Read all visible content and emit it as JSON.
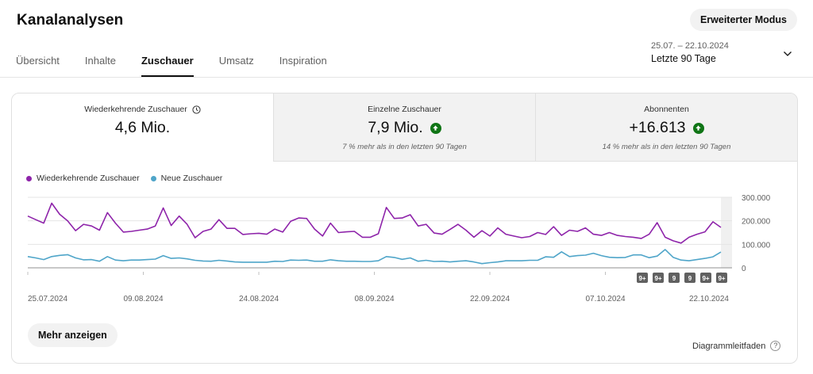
{
  "page_title": "Kanalanalysen",
  "advanced_mode_label": "Erweiterter Modus",
  "tabs": [
    {
      "label": "Übersicht",
      "active": false
    },
    {
      "label": "Inhalte",
      "active": false
    },
    {
      "label": "Zuschauer",
      "active": true
    },
    {
      "label": "Umsatz",
      "active": false
    },
    {
      "label": "Inspiration",
      "active": false
    }
  ],
  "date_range": {
    "range": "25.07. – 22.10.2024",
    "label": "Letzte 90 Tage"
  },
  "metrics": [
    {
      "label": "Wiederkehrende Zuschauer",
      "value": "4,6 Mio.",
      "note": "",
      "icon": "clock-icon"
    },
    {
      "label": "Einzelne Zuschauer",
      "value": "7,9 Mio.",
      "note": "7 % mehr als in den letzten 90 Tagen",
      "icon": "arrow-up-icon"
    },
    {
      "label": "Abonnenten",
      "value": "+16.613",
      "note": "14 % mehr als in den letzten 90 Tagen",
      "icon": "arrow-up-icon"
    }
  ],
  "more_button_label": "Mehr anzeigen",
  "chart_guide_label": "Diagrammleitfaden",
  "colors": {
    "purple": "#8e24aa",
    "blue": "#4fa5c9",
    "green": "#107516"
  },
  "chart_data": {
    "type": "line",
    "legend_position": "top-left",
    "ylim": [
      0,
      300000
    ],
    "y_ticks": [
      "300.000",
      "200.000",
      "100.000",
      "0"
    ],
    "x_tick_labels": [
      "25.07.2024",
      "09.08.2024",
      "24.08.2024",
      "08.09.2024",
      "22.09.2024",
      "07.10.2024",
      "22.10.2024"
    ],
    "series": [
      {
        "name": "Wiederkehrende Zuschauer",
        "color": "#8e24aa",
        "values": [
          220000,
          205000,
          190000,
          275000,
          228000,
          200000,
          158000,
          185000,
          178000,
          160000,
          235000,
          190000,
          152000,
          155000,
          160000,
          165000,
          178000,
          255000,
          180000,
          220000,
          185000,
          128000,
          155000,
          165000,
          205000,
          168000,
          168000,
          142000,
          145000,
          147000,
          143000,
          165000,
          152000,
          198000,
          212000,
          210000,
          165000,
          135000,
          190000,
          150000,
          153000,
          155000,
          130000,
          130000,
          145000,
          257000,
          210000,
          212000,
          226000,
          178000,
          185000,
          148000,
          143000,
          163000,
          185000,
          160000,
          130000,
          158000,
          135000,
          170000,
          143000,
          135000,
          128000,
          133000,
          150000,
          142000,
          175000,
          138000,
          160000,
          155000,
          170000,
          143000,
          138000,
          150000,
          138000,
          133000,
          130000,
          125000,
          143000,
          192000,
          130000,
          115000,
          105000,
          130000,
          143000,
          153000,
          196000,
          172000
        ]
      },
      {
        "name": "Neue Zuschauer",
        "color": "#4fa5c9",
        "values": [
          48000,
          42000,
          35000,
          48000,
          53000,
          56000,
          42000,
          34000,
          35000,
          28000,
          48000,
          33000,
          30000,
          33000,
          33000,
          35000,
          37000,
          52000,
          40000,
          42000,
          38000,
          32000,
          29000,
          28000,
          32000,
          29000,
          25000,
          24000,
          24000,
          24000,
          24000,
          28000,
          27000,
          33000,
          32000,
          33000,
          28000,
          28000,
          34000,
          30000,
          28000,
          28000,
          27000,
          27000,
          30000,
          48000,
          44000,
          36000,
          42000,
          28000,
          32000,
          27000,
          28000,
          25000,
          28000,
          30000,
          25000,
          18000,
          22000,
          25000,
          30000,
          30000,
          30000,
          32000,
          32000,
          47000,
          45000,
          68000,
          48000,
          52000,
          54000,
          62000,
          52000,
          45000,
          43000,
          44000,
          55000,
          55000,
          43000,
          50000,
          78000,
          45000,
          33000,
          30000,
          35000,
          40000,
          47000,
          67000
        ]
      }
    ],
    "markers": [
      "9+",
      "9+",
      "9",
      "9",
      "9+",
      "9+"
    ]
  }
}
